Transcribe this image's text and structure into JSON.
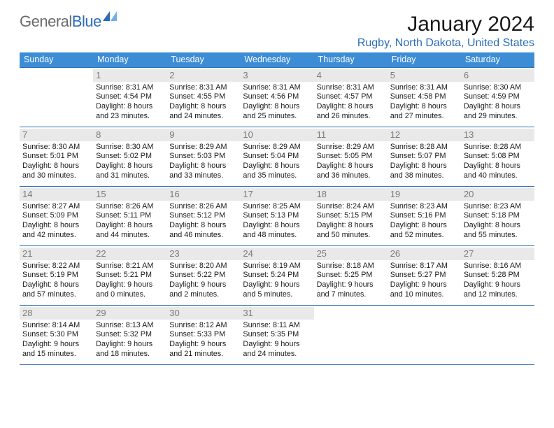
{
  "logo": {
    "text_gray": "General",
    "text_blue": "Blue"
  },
  "title": "January 2024",
  "location": "Rugby, North Dakota, United States",
  "colors": {
    "header_bg": "#3d8dd6",
    "border": "#2a6db5",
    "daynum_bg": "#e9e9e9",
    "text": "#1a1a1a",
    "muted": "#7a7a7a"
  },
  "day_names": [
    "Sunday",
    "Monday",
    "Tuesday",
    "Wednesday",
    "Thursday",
    "Friday",
    "Saturday"
  ],
  "weeks": [
    [
      {
        "n": "",
        "l1": "",
        "l2": "",
        "l3": "",
        "l4": ""
      },
      {
        "n": "1",
        "l1": "Sunrise: 8:31 AM",
        "l2": "Sunset: 4:54 PM",
        "l3": "Daylight: 8 hours",
        "l4": "and 23 minutes."
      },
      {
        "n": "2",
        "l1": "Sunrise: 8:31 AM",
        "l2": "Sunset: 4:55 PM",
        "l3": "Daylight: 8 hours",
        "l4": "and 24 minutes."
      },
      {
        "n": "3",
        "l1": "Sunrise: 8:31 AM",
        "l2": "Sunset: 4:56 PM",
        "l3": "Daylight: 8 hours",
        "l4": "and 25 minutes."
      },
      {
        "n": "4",
        "l1": "Sunrise: 8:31 AM",
        "l2": "Sunset: 4:57 PM",
        "l3": "Daylight: 8 hours",
        "l4": "and 26 minutes."
      },
      {
        "n": "5",
        "l1": "Sunrise: 8:31 AM",
        "l2": "Sunset: 4:58 PM",
        "l3": "Daylight: 8 hours",
        "l4": "and 27 minutes."
      },
      {
        "n": "6",
        "l1": "Sunrise: 8:30 AM",
        "l2": "Sunset: 4:59 PM",
        "l3": "Daylight: 8 hours",
        "l4": "and 29 minutes."
      }
    ],
    [
      {
        "n": "7",
        "l1": "Sunrise: 8:30 AM",
        "l2": "Sunset: 5:01 PM",
        "l3": "Daylight: 8 hours",
        "l4": "and 30 minutes."
      },
      {
        "n": "8",
        "l1": "Sunrise: 8:30 AM",
        "l2": "Sunset: 5:02 PM",
        "l3": "Daylight: 8 hours",
        "l4": "and 31 minutes."
      },
      {
        "n": "9",
        "l1": "Sunrise: 8:29 AM",
        "l2": "Sunset: 5:03 PM",
        "l3": "Daylight: 8 hours",
        "l4": "and 33 minutes."
      },
      {
        "n": "10",
        "l1": "Sunrise: 8:29 AM",
        "l2": "Sunset: 5:04 PM",
        "l3": "Daylight: 8 hours",
        "l4": "and 35 minutes."
      },
      {
        "n": "11",
        "l1": "Sunrise: 8:29 AM",
        "l2": "Sunset: 5:05 PM",
        "l3": "Daylight: 8 hours",
        "l4": "and 36 minutes."
      },
      {
        "n": "12",
        "l1": "Sunrise: 8:28 AM",
        "l2": "Sunset: 5:07 PM",
        "l3": "Daylight: 8 hours",
        "l4": "and 38 minutes."
      },
      {
        "n": "13",
        "l1": "Sunrise: 8:28 AM",
        "l2": "Sunset: 5:08 PM",
        "l3": "Daylight: 8 hours",
        "l4": "and 40 minutes."
      }
    ],
    [
      {
        "n": "14",
        "l1": "Sunrise: 8:27 AM",
        "l2": "Sunset: 5:09 PM",
        "l3": "Daylight: 8 hours",
        "l4": "and 42 minutes."
      },
      {
        "n": "15",
        "l1": "Sunrise: 8:26 AM",
        "l2": "Sunset: 5:11 PM",
        "l3": "Daylight: 8 hours",
        "l4": "and 44 minutes."
      },
      {
        "n": "16",
        "l1": "Sunrise: 8:26 AM",
        "l2": "Sunset: 5:12 PM",
        "l3": "Daylight: 8 hours",
        "l4": "and 46 minutes."
      },
      {
        "n": "17",
        "l1": "Sunrise: 8:25 AM",
        "l2": "Sunset: 5:13 PM",
        "l3": "Daylight: 8 hours",
        "l4": "and 48 minutes."
      },
      {
        "n": "18",
        "l1": "Sunrise: 8:24 AM",
        "l2": "Sunset: 5:15 PM",
        "l3": "Daylight: 8 hours",
        "l4": "and 50 minutes."
      },
      {
        "n": "19",
        "l1": "Sunrise: 8:23 AM",
        "l2": "Sunset: 5:16 PM",
        "l3": "Daylight: 8 hours",
        "l4": "and 52 minutes."
      },
      {
        "n": "20",
        "l1": "Sunrise: 8:23 AM",
        "l2": "Sunset: 5:18 PM",
        "l3": "Daylight: 8 hours",
        "l4": "and 55 minutes."
      }
    ],
    [
      {
        "n": "21",
        "l1": "Sunrise: 8:22 AM",
        "l2": "Sunset: 5:19 PM",
        "l3": "Daylight: 8 hours",
        "l4": "and 57 minutes."
      },
      {
        "n": "22",
        "l1": "Sunrise: 8:21 AM",
        "l2": "Sunset: 5:21 PM",
        "l3": "Daylight: 9 hours",
        "l4": "and 0 minutes."
      },
      {
        "n": "23",
        "l1": "Sunrise: 8:20 AM",
        "l2": "Sunset: 5:22 PM",
        "l3": "Daylight: 9 hours",
        "l4": "and 2 minutes."
      },
      {
        "n": "24",
        "l1": "Sunrise: 8:19 AM",
        "l2": "Sunset: 5:24 PM",
        "l3": "Daylight: 9 hours",
        "l4": "and 5 minutes."
      },
      {
        "n": "25",
        "l1": "Sunrise: 8:18 AM",
        "l2": "Sunset: 5:25 PM",
        "l3": "Daylight: 9 hours",
        "l4": "and 7 minutes."
      },
      {
        "n": "26",
        "l1": "Sunrise: 8:17 AM",
        "l2": "Sunset: 5:27 PM",
        "l3": "Daylight: 9 hours",
        "l4": "and 10 minutes."
      },
      {
        "n": "27",
        "l1": "Sunrise: 8:16 AM",
        "l2": "Sunset: 5:28 PM",
        "l3": "Daylight: 9 hours",
        "l4": "and 12 minutes."
      }
    ],
    [
      {
        "n": "28",
        "l1": "Sunrise: 8:14 AM",
        "l2": "Sunset: 5:30 PM",
        "l3": "Daylight: 9 hours",
        "l4": "and 15 minutes."
      },
      {
        "n": "29",
        "l1": "Sunrise: 8:13 AM",
        "l2": "Sunset: 5:32 PM",
        "l3": "Daylight: 9 hours",
        "l4": "and 18 minutes."
      },
      {
        "n": "30",
        "l1": "Sunrise: 8:12 AM",
        "l2": "Sunset: 5:33 PM",
        "l3": "Daylight: 9 hours",
        "l4": "and 21 minutes."
      },
      {
        "n": "31",
        "l1": "Sunrise: 8:11 AM",
        "l2": "Sunset: 5:35 PM",
        "l3": "Daylight: 9 hours",
        "l4": "and 24 minutes."
      },
      {
        "n": "",
        "l1": "",
        "l2": "",
        "l3": "",
        "l4": ""
      },
      {
        "n": "",
        "l1": "",
        "l2": "",
        "l3": "",
        "l4": ""
      },
      {
        "n": "",
        "l1": "",
        "l2": "",
        "l3": "",
        "l4": ""
      }
    ]
  ]
}
